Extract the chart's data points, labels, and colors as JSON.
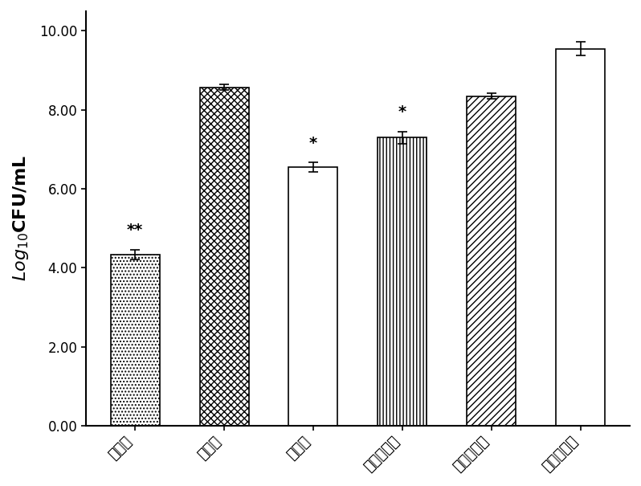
{
  "categories": [
    "大黄素",
    "大黄酚",
    "大黄酸",
    "大黄素甲醚",
    "芦荟大黄素",
    "阳性对照组"
  ],
  "values": [
    4.33,
    8.57,
    6.55,
    7.3,
    8.35,
    9.55
  ],
  "errors": [
    0.12,
    0.07,
    0.12,
    0.15,
    0.07,
    0.18
  ],
  "annotations": [
    "**",
    "",
    "*",
    "*",
    "",
    ""
  ],
  "hatch_patterns": [
    "....",
    "xxxx",
    "====",
    "||||",
    "////",
    "####"
  ],
  "bar_facecolor": "white",
  "bar_edgecolor": "black",
  "ylabel": "$Log_{10}$CFU/mL",
  "ylim": [
    0,
    10.5
  ],
  "yticks": [
    0.0,
    2.0,
    4.0,
    6.0,
    8.0,
    10.0
  ],
  "ytick_labels": [
    "0.00",
    "2.00",
    "4.00",
    "6.00",
    "8.00",
    "10.00"
  ],
  "annotation_fontsize": 14,
  "ylabel_fontsize": 16,
  "tick_fontsize": 12,
  "bar_width": 0.55,
  "background_color": "white",
  "linewidth": 1.2
}
